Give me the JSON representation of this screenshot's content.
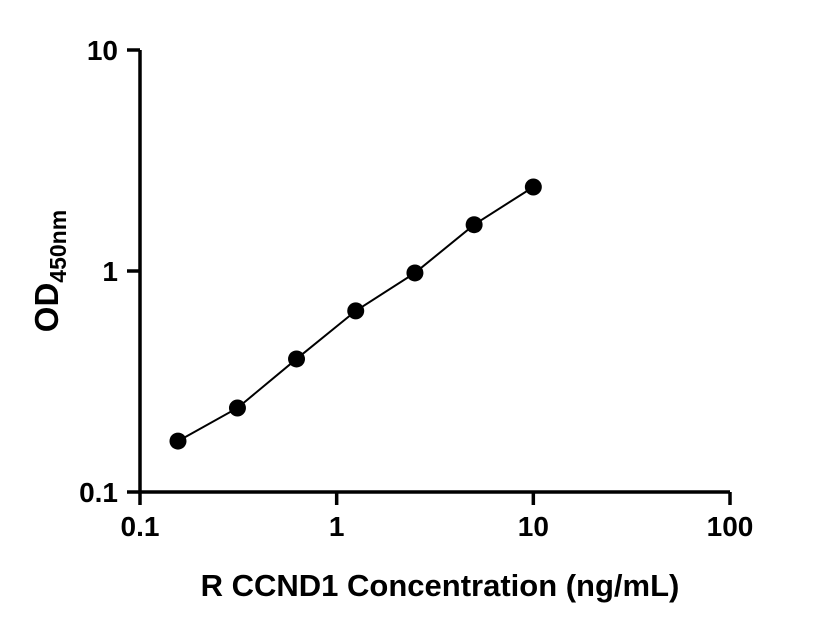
{
  "chart_data": {
    "type": "line",
    "subtype": "scatter-line",
    "title": "",
    "xlabel": "R CCND1 Concentration (ng/mL)",
    "ylabel": "OD450nm",
    "ylabel_main": "OD",
    "ylabel_sub": "450nm",
    "x_scale": "log10",
    "y_scale": "log10",
    "xlim": [
      0.1,
      100
    ],
    "ylim": [
      0.1,
      10
    ],
    "x_ticks": [
      0.1,
      1,
      10,
      100
    ],
    "x_tick_labels": [
      "0.1",
      "1",
      "10",
      "100"
    ],
    "y_ticks": [
      0.1,
      1,
      10
    ],
    "y_tick_labels": [
      "0.1",
      "1",
      "10"
    ],
    "grid": false,
    "legend": "none",
    "series": [
      {
        "x": [
          0.156,
          0.313,
          0.625,
          1.25,
          2.5,
          5,
          10
        ],
        "y": [
          0.17,
          0.24,
          0.4,
          0.66,
          0.98,
          1.62,
          2.4
        ],
        "marker": "circle",
        "marker_size": 8.5,
        "marker_color": "#000000",
        "line_color": "#000000",
        "line_width": 2
      }
    ]
  },
  "colors": {
    "background": "#ffffff",
    "axis": "#000000",
    "text": "#000000"
  }
}
